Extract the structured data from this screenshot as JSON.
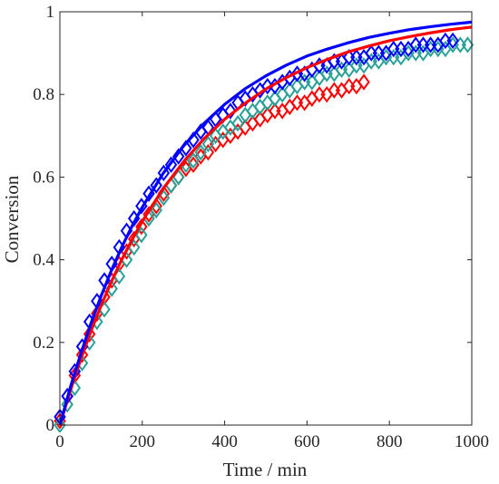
{
  "chart_data": {
    "type": "line",
    "title": "",
    "xlabel": "Time / min",
    "ylabel": "Conversion",
    "xlim": [
      0,
      1000
    ],
    "ylim": [
      0,
      1
    ],
    "x_ticks": [
      0,
      200,
      400,
      600,
      800,
      1000
    ],
    "y_ticks": [
      0,
      0.2,
      0.4,
      0.6,
      0.8,
      1
    ],
    "x_tick_labels": [
      "0",
      "200",
      "400",
      "600",
      "800",
      "1000"
    ],
    "y_tick_labels": [
      "0",
      "0.2",
      "0.4",
      "0.6",
      "0.8",
      "1"
    ],
    "grid": false,
    "legend": "none",
    "series": [
      {
        "kind": "fit-line",
        "color": "#ff0000",
        "x": [
          0,
          25,
          50,
          75,
          100,
          125,
          150,
          175,
          200,
          250,
          300,
          350,
          400,
          450,
          500,
          550,
          600,
          650,
          700,
          750,
          800,
          850,
          900,
          950,
          1000
        ],
        "y": [
          0,
          0.082,
          0.157,
          0.226,
          0.289,
          0.347,
          0.4,
          0.448,
          0.493,
          0.571,
          0.637,
          0.693,
          0.74,
          0.779,
          0.813,
          0.841,
          0.865,
          0.885,
          0.903,
          0.917,
          0.93,
          0.94,
          0.949,
          0.957,
          0.963
        ]
      },
      {
        "kind": "fit-line",
        "color": "#0000ff",
        "x": [
          0,
          25,
          50,
          75,
          100,
          125,
          150,
          175,
          200,
          250,
          300,
          350,
          400,
          450,
          500,
          550,
          600,
          650,
          700,
          750,
          800,
          850,
          900,
          950,
          1000
        ],
        "y": [
          0,
          0.09,
          0.17,
          0.245,
          0.312,
          0.374,
          0.43,
          0.481,
          0.527,
          0.608,
          0.675,
          0.73,
          0.776,
          0.814,
          0.845,
          0.871,
          0.893,
          0.91,
          0.925,
          0.938,
          0.948,
          0.957,
          0.964,
          0.97,
          0.975
        ]
      },
      {
        "kind": "markers",
        "marker": "diamond",
        "color": "#ff0000",
        "x": [
          0,
          18,
          36,
          54,
          72,
          90,
          108,
          126,
          144,
          162,
          180,
          198,
          216,
          234,
          252,
          270,
          288,
          306,
          324,
          342,
          360,
          378,
          396,
          414,
          432,
          450,
          468,
          486,
          504,
          522,
          540,
          558,
          576,
          594,
          612,
          630,
          648,
          666,
          684,
          702,
          720,
          738
        ],
        "y": [
          0.01,
          0.07,
          0.12,
          0.17,
          0.22,
          0.27,
          0.31,
          0.35,
          0.39,
          0.42,
          0.45,
          0.48,
          0.51,
          0.53,
          0.56,
          0.58,
          0.6,
          0.62,
          0.63,
          0.65,
          0.66,
          0.68,
          0.69,
          0.7,
          0.71,
          0.72,
          0.73,
          0.74,
          0.75,
          0.76,
          0.76,
          0.77,
          0.78,
          0.78,
          0.79,
          0.8,
          0.8,
          0.81,
          0.81,
          0.82,
          0.82,
          0.83
        ]
      },
      {
        "kind": "markers",
        "marker": "diamond",
        "color": "#2aa198",
        "x": [
          0,
          18,
          36,
          54,
          72,
          90,
          108,
          126,
          144,
          162,
          180,
          198,
          216,
          234,
          252,
          270,
          288,
          306,
          324,
          342,
          360,
          378,
          396,
          414,
          432,
          450,
          468,
          486,
          504,
          522,
          540,
          558,
          576,
          594,
          612,
          630,
          648,
          666,
          684,
          702,
          720,
          738,
          756,
          774,
          792,
          810,
          828,
          846,
          864,
          882,
          900,
          918,
          936,
          954,
          972,
          990
        ],
        "y": [
          0.0,
          0.05,
          0.09,
          0.15,
          0.2,
          0.25,
          0.28,
          0.33,
          0.36,
          0.4,
          0.43,
          0.46,
          0.5,
          0.52,
          0.55,
          0.58,
          0.6,
          0.63,
          0.64,
          0.66,
          0.68,
          0.7,
          0.71,
          0.72,
          0.73,
          0.75,
          0.76,
          0.77,
          0.78,
          0.79,
          0.8,
          0.81,
          0.82,
          0.83,
          0.83,
          0.84,
          0.85,
          0.85,
          0.86,
          0.86,
          0.87,
          0.87,
          0.88,
          0.88,
          0.89,
          0.89,
          0.89,
          0.9,
          0.9,
          0.9,
          0.91,
          0.91,
          0.91,
          0.92,
          0.92,
          0.92
        ]
      },
      {
        "kind": "markers",
        "marker": "diamond",
        "color": "#0000ff",
        "x": [
          0,
          18,
          36,
          54,
          72,
          90,
          108,
          126,
          144,
          162,
          180,
          198,
          216,
          234,
          252,
          270,
          288,
          306,
          324,
          342,
          360,
          378,
          396,
          414,
          432,
          450,
          468,
          486,
          504,
          522,
          540,
          558,
          576,
          594,
          612,
          630,
          648,
          666,
          684,
          702,
          720,
          738,
          756,
          774,
          792,
          810,
          828,
          846,
          864,
          882,
          900,
          918,
          936,
          954
        ],
        "y": [
          0.02,
          0.07,
          0.13,
          0.19,
          0.25,
          0.3,
          0.35,
          0.39,
          0.43,
          0.47,
          0.5,
          0.53,
          0.56,
          0.58,
          0.61,
          0.63,
          0.65,
          0.67,
          0.69,
          0.71,
          0.72,
          0.74,
          0.75,
          0.76,
          0.78,
          0.79,
          0.8,
          0.81,
          0.82,
          0.82,
          0.83,
          0.84,
          0.85,
          0.85,
          0.86,
          0.87,
          0.87,
          0.88,
          0.88,
          0.89,
          0.89,
          0.89,
          0.9,
          0.9,
          0.9,
          0.91,
          0.91,
          0.91,
          0.92,
          0.92,
          0.92,
          0.92,
          0.93,
          0.93
        ]
      }
    ]
  }
}
